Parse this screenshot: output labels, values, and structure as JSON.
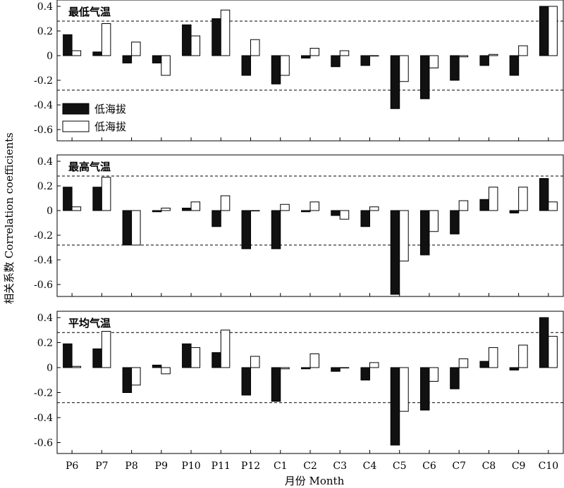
{
  "figure": {
    "ylabel": "相关系数 Correlation coefficients",
    "xlabel": "月份 Month",
    "legend": [
      "低海拔",
      "低海拔"
    ]
  },
  "chart_data": [
    {
      "type": "bar",
      "title": "最低气温",
      "categories": [
        "P6",
        "P7",
        "P8",
        "P9",
        "P10",
        "P11",
        "P12",
        "C1",
        "C2",
        "C3",
        "C4",
        "C5",
        "C6",
        "C7",
        "C8",
        "C9",
        "C10"
      ],
      "ylim": [
        -0.7,
        0.4
      ],
      "yticks": [
        0.4,
        0.2,
        0,
        -0.2,
        -0.4,
        -0.6
      ],
      "ytick_labels": [
        "0.4",
        "0.2",
        "0",
        "-0.2",
        "-0.4",
        "-0.6"
      ],
      "reference_lines": [
        0.28,
        -0.28
      ],
      "series": [
        {
          "name": "低海拔",
          "color": "#111111",
          "values": [
            0.17,
            0.03,
            -0.06,
            -0.06,
            0.25,
            0.3,
            -0.16,
            -0.23,
            -0.02,
            -0.09,
            -0.08,
            -0.43,
            -0.35,
            -0.2,
            -0.08,
            -0.16,
            0.4
          ]
        },
        {
          "name": "低海拔",
          "color": "#ffffff",
          "values": [
            0.04,
            0.26,
            0.11,
            -0.16,
            0.16,
            0.37,
            0.13,
            -0.16,
            0.06,
            0.04,
            0.0,
            -0.21,
            -0.1,
            -0.01,
            0.01,
            0.08,
            0.4
          ]
        }
      ]
    },
    {
      "type": "bar",
      "title": "最高气温",
      "categories": [
        "P6",
        "P7",
        "P8",
        "P9",
        "P10",
        "P11",
        "P12",
        "C1",
        "C2",
        "C3",
        "C4",
        "C5",
        "C6",
        "C7",
        "C8",
        "C9",
        "C10"
      ],
      "ylim": [
        -0.7,
        0.4
      ],
      "yticks": [
        0.4,
        0.2,
        0,
        -0.2,
        -0.4,
        -0.6
      ],
      "ytick_labels": [
        "0.4",
        "0.2",
        "0",
        "-0.2",
        "-0.4",
        "-0.6"
      ],
      "reference_lines": [
        0.28,
        -0.28
      ],
      "series": [
        {
          "name": "低海拔",
          "color": "#111111",
          "values": [
            0.19,
            0.19,
            -0.28,
            -0.01,
            0.02,
            -0.13,
            -0.31,
            -0.31,
            -0.01,
            -0.04,
            -0.13,
            -0.68,
            -0.36,
            -0.19,
            0.09,
            -0.02,
            0.26
          ]
        },
        {
          "name": "低海拔",
          "color": "#ffffff",
          "values": [
            0.03,
            0.27,
            -0.28,
            0.02,
            0.07,
            0.12,
            0.0,
            0.05,
            0.07,
            -0.07,
            0.03,
            -0.41,
            -0.17,
            0.08,
            0.19,
            0.19,
            0.07
          ]
        }
      ]
    },
    {
      "type": "bar",
      "title": "平均气温",
      "categories": [
        "P6",
        "P7",
        "P8",
        "P9",
        "P10",
        "P11",
        "P12",
        "C1",
        "C2",
        "C3",
        "C4",
        "C5",
        "C6",
        "C7",
        "C8",
        "C9",
        "C10"
      ],
      "ylim": [
        -0.7,
        0.4
      ],
      "yticks": [
        0.4,
        0.2,
        0,
        -0.2,
        -0.4,
        -0.6
      ],
      "ytick_labels": [
        "0.4",
        "0.2",
        "0",
        "-0.2",
        "-0.4",
        "-0.6"
      ],
      "reference_lines": [
        0.28,
        -0.28
      ],
      "series": [
        {
          "name": "低海拔",
          "color": "#111111",
          "values": [
            0.19,
            0.15,
            -0.2,
            0.02,
            0.19,
            0.12,
            -0.22,
            -0.27,
            -0.01,
            -0.03,
            -0.1,
            -0.62,
            -0.34,
            -0.17,
            0.05,
            -0.02,
            0.4
          ]
        },
        {
          "name": "低海拔",
          "color": "#ffffff",
          "values": [
            0.01,
            0.29,
            -0.14,
            -0.05,
            0.16,
            0.3,
            0.09,
            -0.01,
            0.11,
            0.0,
            0.04,
            -0.35,
            -0.11,
            0.07,
            0.16,
            0.18,
            0.25
          ]
        }
      ]
    }
  ]
}
